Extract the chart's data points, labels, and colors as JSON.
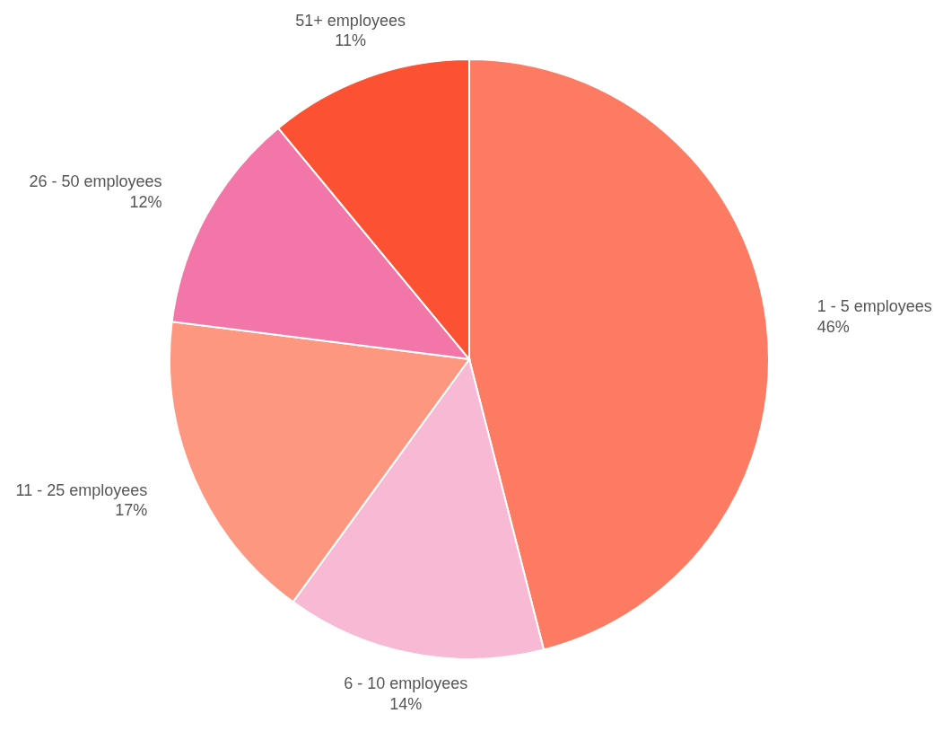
{
  "chart_data": {
    "type": "pie",
    "categories": [
      "1 - 5 employees",
      "6 - 10 employees",
      "11 - 25 employees",
      "26 - 50 employees",
      "51+ employees"
    ],
    "values": [
      46,
      14,
      17,
      12,
      11
    ],
    "colors": [
      "#fc7b62",
      "#f7b9d3",
      "#fd977f",
      "#f277a8",
      "#fd5133"
    ],
    "value_labels": [
      "46%",
      "14%",
      "17%",
      "12%",
      "11%"
    ]
  }
}
